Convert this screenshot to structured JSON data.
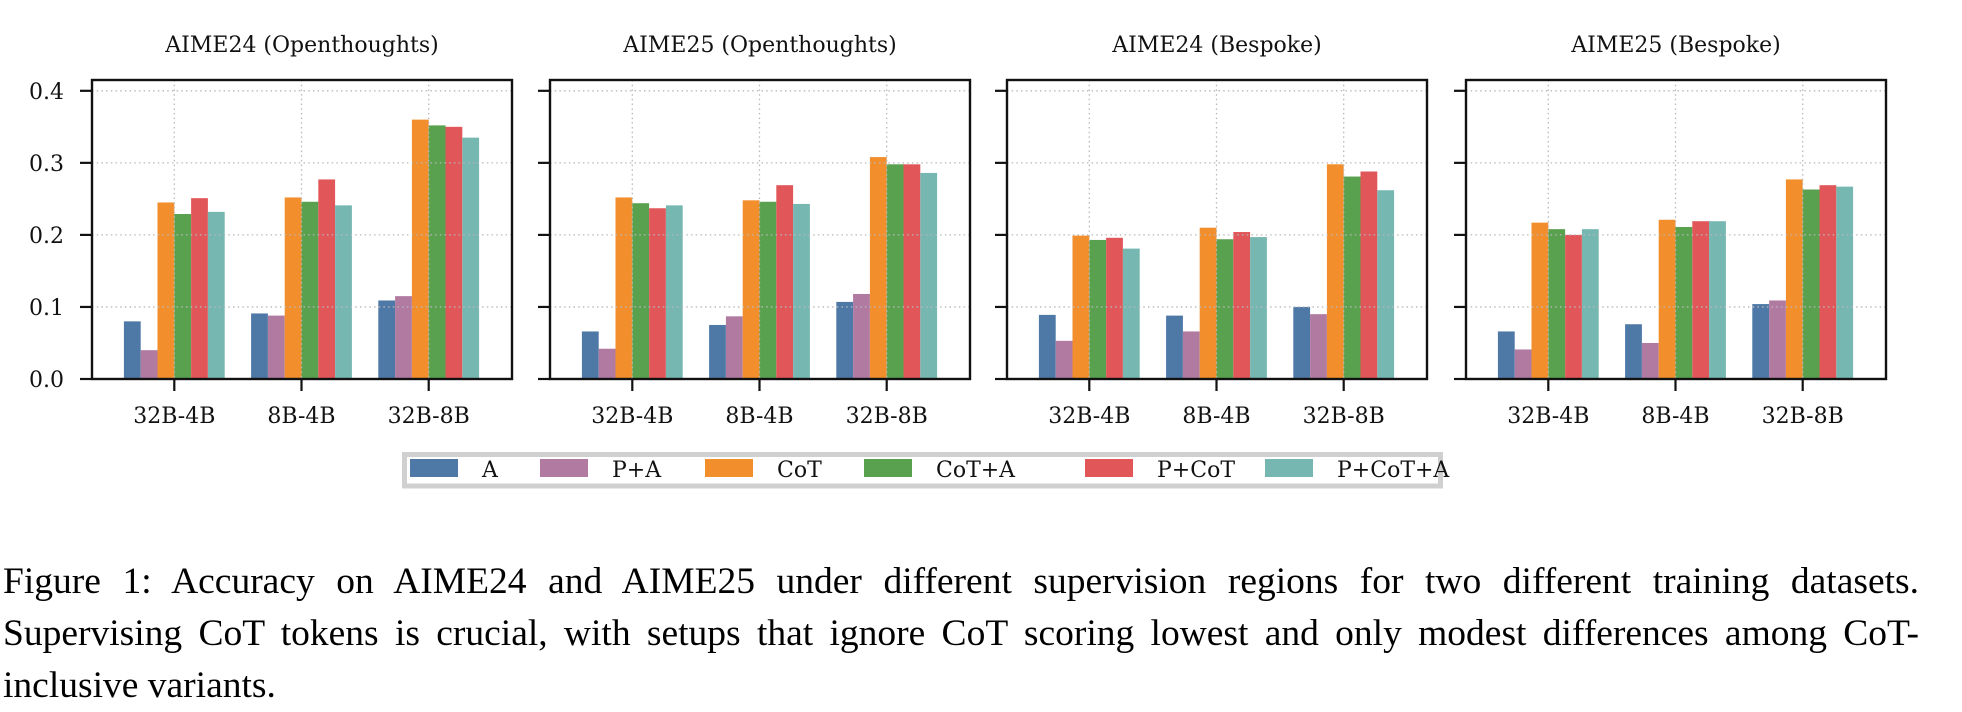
{
  "chart_data": {
    "type": "bar",
    "layout": "1x4 subplots, shared y-axis",
    "ylim": [
      0,
      0.415
    ],
    "yticks": [
      0.0,
      0.1,
      0.2,
      0.3,
      0.4
    ],
    "ytick_labels": [
      "0.0",
      "0.1",
      "0.2",
      "0.3",
      "0.4"
    ],
    "grid": true,
    "grid_style": "dotted",
    "categories": [
      "32B-4B",
      "8B-4B",
      "32B-8B"
    ],
    "xlabel": "",
    "ylabel": "",
    "legend": {
      "placement": "bottom-center",
      "entries": [
        {
          "name": "A",
          "color": "#4e79a7"
        },
        {
          "name": "P+A",
          "color": "#b07aa1"
        },
        {
          "name": "CoT",
          "color": "#f28e2b"
        },
        {
          "name": "CoT+A",
          "color": "#59a14f"
        },
        {
          "name": "P+CoT",
          "color": "#e15759"
        },
        {
          "name": "P+CoT+A",
          "color": "#76b7b2"
        }
      ]
    },
    "panels": [
      {
        "title": "AIME24 (Openthoughts)",
        "series": [
          {
            "name": "A",
            "values": [
              0.08,
              0.091,
              0.109
            ]
          },
          {
            "name": "P+A",
            "values": [
              0.04,
              0.088,
              0.115
            ]
          },
          {
            "name": "CoT",
            "values": [
              0.245,
              0.252,
              0.36
            ]
          },
          {
            "name": "CoT+A",
            "values": [
              0.229,
              0.246,
              0.352
            ]
          },
          {
            "name": "P+CoT",
            "values": [
              0.251,
              0.277,
              0.35
            ]
          },
          {
            "name": "P+CoT+A",
            "values": [
              0.232,
              0.241,
              0.335
            ]
          }
        ]
      },
      {
        "title": "AIME25 (Openthoughts)",
        "series": [
          {
            "name": "A",
            "values": [
              0.066,
              0.075,
              0.107
            ]
          },
          {
            "name": "P+A",
            "values": [
              0.042,
              0.087,
              0.118
            ]
          },
          {
            "name": "CoT",
            "values": [
              0.252,
              0.248,
              0.308
            ]
          },
          {
            "name": "CoT+A",
            "values": [
              0.244,
              0.246,
              0.298
            ]
          },
          {
            "name": "P+CoT",
            "values": [
              0.237,
              0.269,
              0.298
            ]
          },
          {
            "name": "P+CoT+A",
            "values": [
              0.241,
              0.243,
              0.286
            ]
          }
        ]
      },
      {
        "title": "AIME24 (Bespoke)",
        "series": [
          {
            "name": "A",
            "values": [
              0.089,
              0.088,
              0.1
            ]
          },
          {
            "name": "P+A",
            "values": [
              0.053,
              0.066,
              0.09
            ]
          },
          {
            "name": "CoT",
            "values": [
              0.199,
              0.21,
              0.298
            ]
          },
          {
            "name": "CoT+A",
            "values": [
              0.193,
              0.194,
              0.281
            ]
          },
          {
            "name": "P+CoT",
            "values": [
              0.196,
              0.204,
              0.288
            ]
          },
          {
            "name": "P+CoT+A",
            "values": [
              0.181,
              0.197,
              0.262
            ]
          }
        ]
      },
      {
        "title": "AIME25 (Bespoke)",
        "series": [
          {
            "name": "A",
            "values": [
              0.066,
              0.076,
              0.104
            ]
          },
          {
            "name": "P+A",
            "values": [
              0.041,
              0.05,
              0.109
            ]
          },
          {
            "name": "CoT",
            "values": [
              0.217,
              0.221,
              0.277
            ]
          },
          {
            "name": "CoT+A",
            "values": [
              0.208,
              0.211,
              0.263
            ]
          },
          {
            "name": "P+CoT",
            "values": [
              0.2,
              0.219,
              0.269
            ]
          },
          {
            "name": "P+CoT+A",
            "values": [
              0.208,
              0.219,
              0.267
            ]
          }
        ]
      }
    ]
  },
  "caption": "Figure 1: Accuracy on AIME24 and AIME25 under different supervision regions for two different training datasets. Supervising CoT tokens is crucial, with setups that ignore CoT scoring lowest and only modest differences among CoT-inclusive variants."
}
